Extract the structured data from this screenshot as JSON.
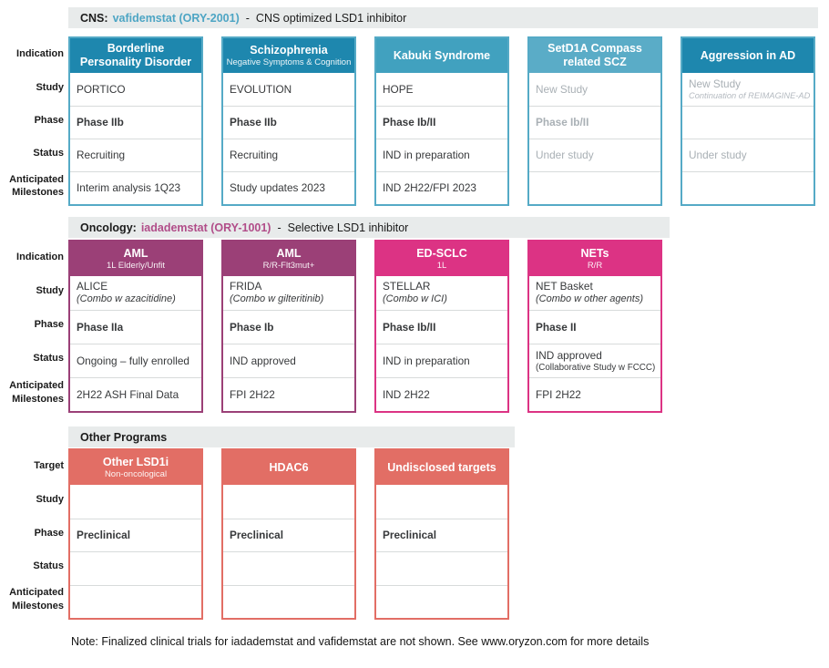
{
  "palette": {
    "teal_dark": "#1e87ae",
    "teal_mid": "#41a1bf",
    "teal_light": "#5aacc7",
    "teal_border": "#55aac6",
    "plum": "#9b4077",
    "pink": "#dc3384",
    "salmon": "#e26e65",
    "strip_bg": "#e8ebeb",
    "divider": "#d8dbdb",
    "muted_text": "#a9b0b5",
    "cns_drug_text": "#4da5c4",
    "oncology_drug_text": "#b14d89"
  },
  "cns": {
    "strip": {
      "label": "CNS:",
      "drug": "vafidemstat (ORY-2001)",
      "sep": "-",
      "desc": "CNS optimized LSD1 inhibitor"
    },
    "labels": {
      "row0": "Indication",
      "row1": "Study",
      "row2": "Phase",
      "row3": "Status",
      "row4a": "Anticipated",
      "row4b": "Milestones"
    },
    "cards": [
      {
        "title": "Borderline",
        "title2": "Personality Disorder",
        "subtitle": "",
        "study": "PORTICO",
        "study_sub": "",
        "phase": "Phase IIb",
        "status": "Recruiting",
        "milestone": "Interim analysis 1Q23"
      },
      {
        "title": "Schizophrenia",
        "title2": "",
        "subtitle": "Negative Symptoms & Cognition",
        "study": "EVOLUTION",
        "study_sub": "",
        "phase": "Phase IIb",
        "status": "Recruiting",
        "milestone": "Study updates 2023"
      },
      {
        "title": "Kabuki Syndrome",
        "title2": "",
        "subtitle": "",
        "study": "HOPE",
        "study_sub": "",
        "phase": "Phase Ib/II",
        "status": "IND in preparation",
        "milestone": "IND 2H22/FPI 2023"
      },
      {
        "title": "SetD1A Compass",
        "title2": "related SCZ",
        "subtitle": "",
        "study": "New Study",
        "study_sub": "",
        "phase": "Phase Ib/II",
        "status": "Under study",
        "milestone": ""
      },
      {
        "title": "Aggression in AD",
        "title2": "",
        "subtitle": "",
        "study": "New Study",
        "study_sub": "Continuation of REIMAGINE-AD",
        "phase": "",
        "status": "Under study",
        "milestone": ""
      }
    ]
  },
  "oncology": {
    "strip": {
      "label": "Oncology:",
      "drug": "iadademstat (ORY-1001)",
      "sep": "-",
      "desc": "Selective LSD1 inhibitor"
    },
    "labels": {
      "row0": "Indication",
      "row1": "Study",
      "row2": "Phase",
      "row3": "Status",
      "row4a": "Anticipated",
      "row4b": "Milestones"
    },
    "cards": [
      {
        "title": "AML",
        "subtitle": "1L Elderly/Unfit",
        "study": "ALICE",
        "study_sub": "(Combo w azacitidine)",
        "phase": "Phase IIa",
        "status": "Ongoing – fully enrolled",
        "status_sub": "",
        "milestone": "2H22 ASH Final Data"
      },
      {
        "title": "AML",
        "subtitle": "R/R-Flt3mut+",
        "study": "FRIDA",
        "study_sub": "(Combo w gilteritinib)",
        "phase": "Phase Ib",
        "status": "IND approved",
        "status_sub": "",
        "milestone": "FPI 2H22"
      },
      {
        "title": "ED-SCLC",
        "subtitle": "1L",
        "study": "STELLAR",
        "study_sub": "(Combo w ICI)",
        "phase": "Phase Ib/II",
        "status": "IND in preparation",
        "status_sub": "",
        "milestone": "IND 2H22"
      },
      {
        "title": "NETs",
        "subtitle": "R/R",
        "study": "NET Basket",
        "study_sub": "(Combo w other agents)",
        "phase": "Phase II",
        "status": "IND approved",
        "status_sub": "(Collaborative Study w FCCC)",
        "milestone": "FPI 2H22"
      }
    ]
  },
  "other": {
    "strip": {
      "label": "Other Programs"
    },
    "labels": {
      "row0": "Target",
      "row1": "Study",
      "row2": "Phase",
      "row3": "Status",
      "row4a": "Anticipated",
      "row4b": "Milestones"
    },
    "cards": [
      {
        "title": "Other LSD1i",
        "subtitle": "Non-oncological",
        "study": "",
        "phase": "Preclinical",
        "status": "",
        "milestone": ""
      },
      {
        "title": "HDAC6",
        "subtitle": "",
        "study": "",
        "phase": "Preclinical",
        "status": "",
        "milestone": ""
      },
      {
        "title": "Undisclosed targets",
        "subtitle": "",
        "study": "",
        "phase": "Preclinical",
        "status": "",
        "milestone": ""
      }
    ]
  },
  "note": "Note: Finalized clinical trials for iadademstat and vafidemstat are not shown. See www.oryzon.com for more details"
}
